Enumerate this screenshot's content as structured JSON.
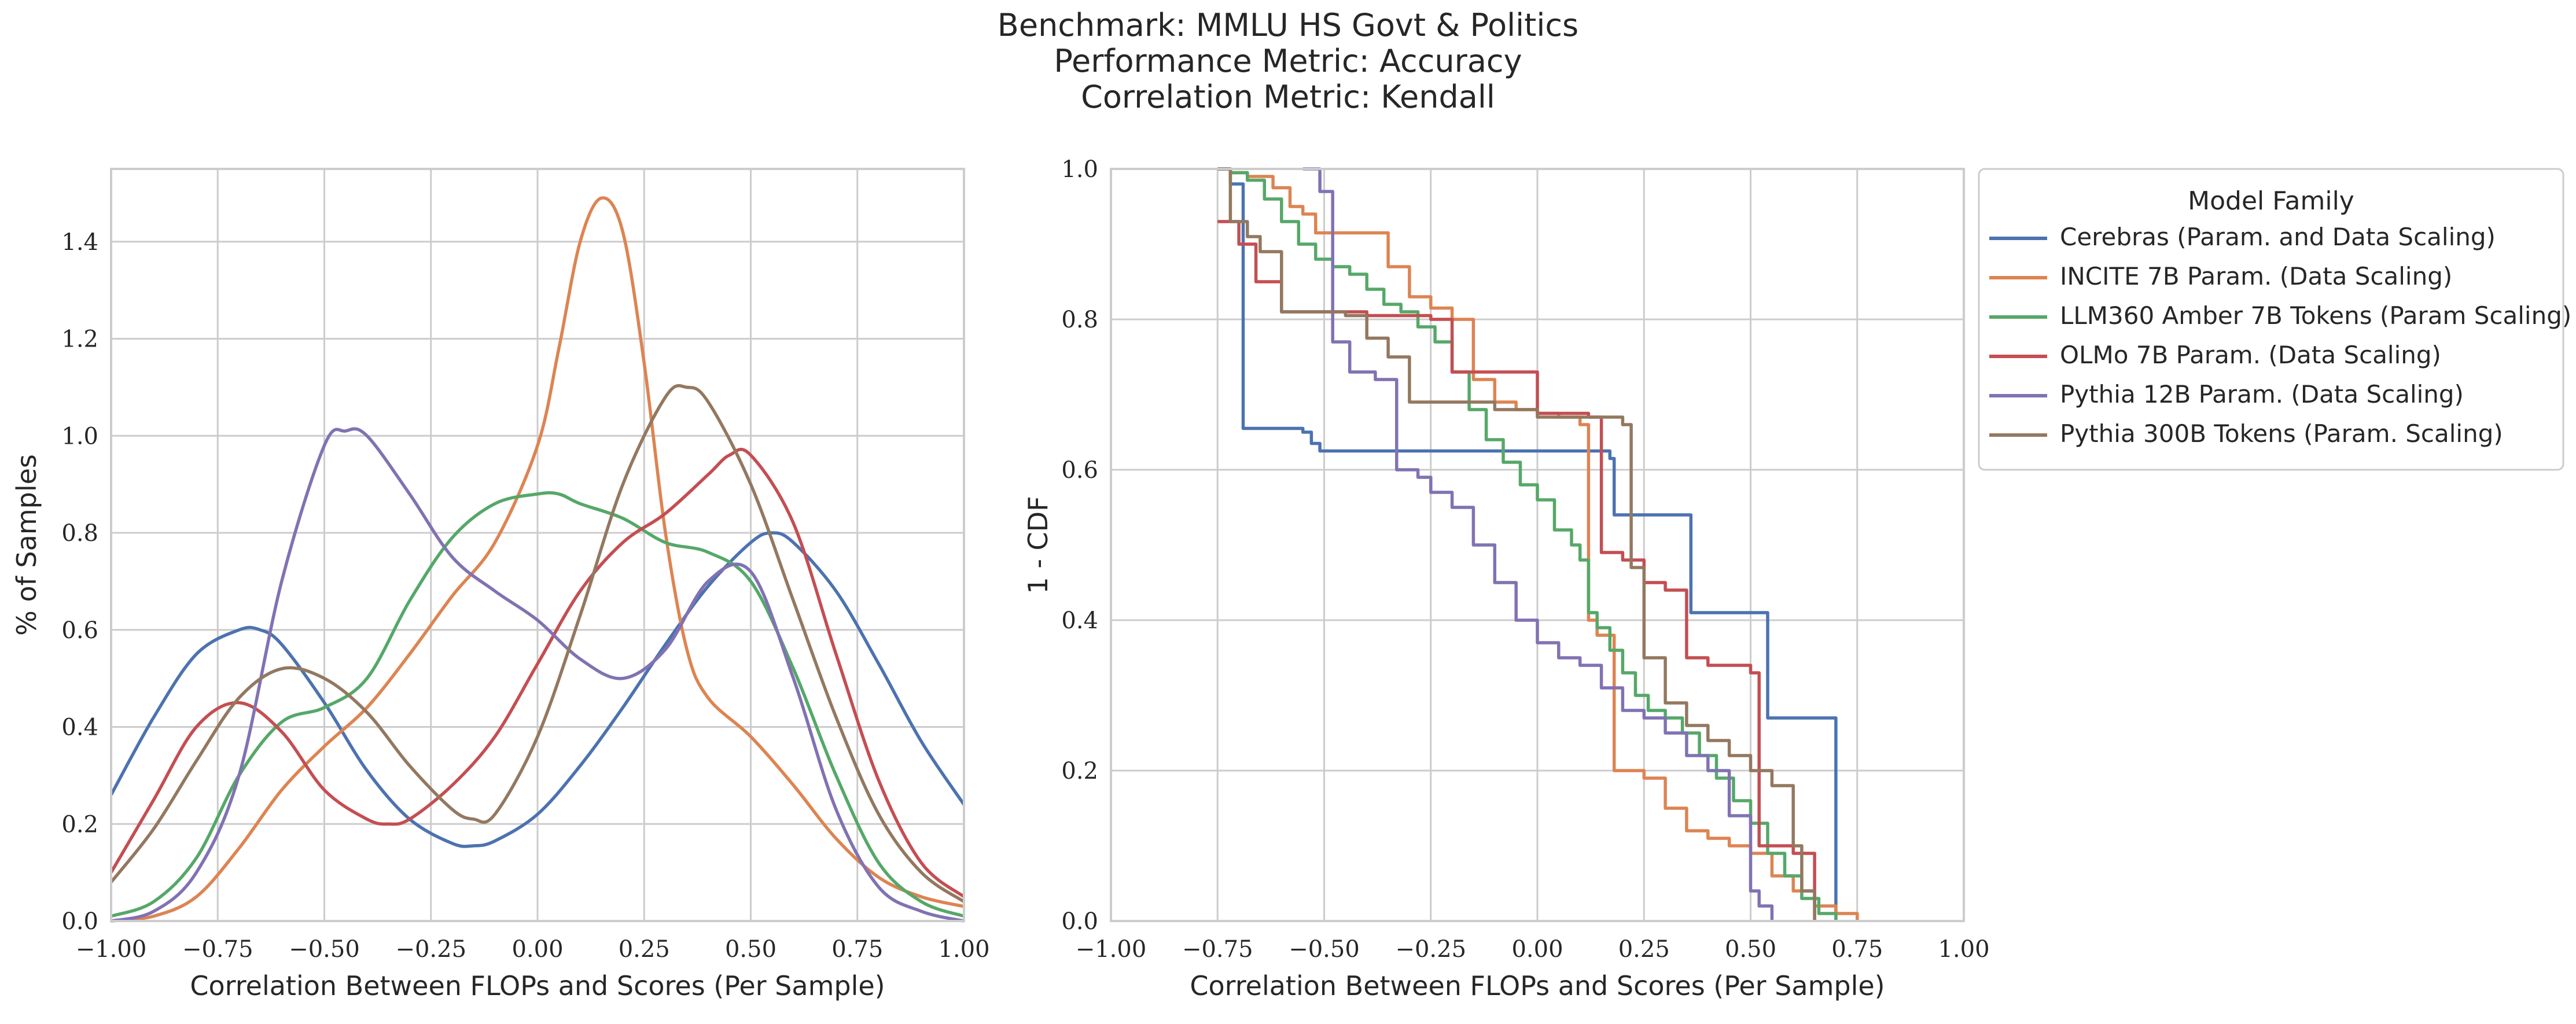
{
  "title_lines": [
    "Benchmark: MMLU HS Govt & Politics",
    "Performance Metric: Accuracy",
    "Correlation Metric: Kendall"
  ],
  "colors": {
    "Cerebras (Param. and Data Scaling)": "#4c72b0",
    "INCITE 7B Param. (Data Scaling)": "#dd8452",
    "LLM360 Amber 7B Tokens (Param Scaling)": "#55a868",
    "OLMo 7B Param. (Data Scaling)": "#c44e52",
    "Pythia 12B Param. (Data Scaling)": "#8172b3",
    "Pythia 300B Tokens (Param. Scaling)": "#937860"
  },
  "chart_data": [
    {
      "type": "line",
      "subtype": "kde",
      "xlabel": "Correlation Between FLOPs and Scores (Per Sample)",
      "ylabel": "% of Samples",
      "xlim": [
        -1.0,
        1.0
      ],
      "ylim": [
        0.0,
        1.55
      ],
      "xticks": [
        "−1.00",
        "−0.75",
        "−0.50",
        "−0.25",
        "0.00",
        "0.25",
        "0.50",
        "0.75",
        "1.00"
      ],
      "yticks": [
        "0.0",
        "0.2",
        "0.4",
        "0.6",
        "0.8",
        "1.0",
        "1.2",
        "1.4"
      ],
      "grid": true,
      "series": [
        {
          "name": "Cerebras (Param. and Data Scaling)",
          "x": [
            -1.0,
            -0.9,
            -0.8,
            -0.7,
            -0.65,
            -0.6,
            -0.5,
            -0.4,
            -0.3,
            -0.2,
            -0.15,
            -0.1,
            0.0,
            0.1,
            0.2,
            0.3,
            0.4,
            0.5,
            0.55,
            0.6,
            0.7,
            0.8,
            0.9,
            1.0
          ],
          "y": [
            0.26,
            0.42,
            0.55,
            0.6,
            0.6,
            0.57,
            0.45,
            0.31,
            0.21,
            0.16,
            0.155,
            0.165,
            0.22,
            0.32,
            0.44,
            0.57,
            0.69,
            0.78,
            0.8,
            0.78,
            0.68,
            0.53,
            0.37,
            0.24
          ]
        },
        {
          "name": "INCITE 7B Param. (Data Scaling)",
          "x": [
            -1.0,
            -0.9,
            -0.8,
            -0.7,
            -0.6,
            -0.5,
            -0.4,
            -0.3,
            -0.2,
            -0.1,
            0.0,
            0.05,
            0.1,
            0.15,
            0.2,
            0.25,
            0.3,
            0.35,
            0.4,
            0.5,
            0.6,
            0.7,
            0.8,
            0.9,
            1.0
          ],
          "y": [
            0.0,
            0.01,
            0.05,
            0.15,
            0.27,
            0.36,
            0.44,
            0.55,
            0.67,
            0.78,
            0.98,
            1.18,
            1.4,
            1.49,
            1.42,
            1.15,
            0.8,
            0.56,
            0.46,
            0.38,
            0.28,
            0.17,
            0.09,
            0.05,
            0.03
          ]
        },
        {
          "name": "LLM360 Amber 7B Tokens (Param Scaling)",
          "x": [
            -1.0,
            -0.9,
            -0.8,
            -0.7,
            -0.6,
            -0.5,
            -0.4,
            -0.3,
            -0.2,
            -0.1,
            0.0,
            0.05,
            0.1,
            0.2,
            0.3,
            0.4,
            0.5,
            0.6,
            0.7,
            0.8,
            0.9,
            1.0
          ],
          "y": [
            0.01,
            0.04,
            0.13,
            0.3,
            0.41,
            0.44,
            0.5,
            0.66,
            0.79,
            0.86,
            0.88,
            0.88,
            0.86,
            0.83,
            0.78,
            0.76,
            0.7,
            0.52,
            0.3,
            0.12,
            0.04,
            0.01
          ]
        },
        {
          "name": "OLMo 7B Param. (Data Scaling)",
          "x": [
            -1.0,
            -0.9,
            -0.8,
            -0.7,
            -0.6,
            -0.5,
            -0.4,
            -0.35,
            -0.3,
            -0.2,
            -0.1,
            0.0,
            0.1,
            0.2,
            0.3,
            0.4,
            0.45,
            0.5,
            0.6,
            0.7,
            0.8,
            0.9,
            1.0
          ],
          "y": [
            0.1,
            0.25,
            0.4,
            0.45,
            0.39,
            0.27,
            0.21,
            0.2,
            0.21,
            0.28,
            0.38,
            0.53,
            0.68,
            0.78,
            0.84,
            0.92,
            0.96,
            0.96,
            0.82,
            0.55,
            0.29,
            0.12,
            0.05
          ]
        },
        {
          "name": "Pythia 12B Param. (Data Scaling)",
          "x": [
            -1.0,
            -0.9,
            -0.8,
            -0.7,
            -0.6,
            -0.5,
            -0.45,
            -0.4,
            -0.3,
            -0.2,
            -0.1,
            0.0,
            0.1,
            0.2,
            0.3,
            0.4,
            0.5,
            0.6,
            0.7,
            0.8,
            0.9,
            1.0
          ],
          "y": [
            0.0,
            0.02,
            0.1,
            0.3,
            0.7,
            0.98,
            1.01,
            1.0,
            0.88,
            0.75,
            0.68,
            0.62,
            0.54,
            0.5,
            0.56,
            0.7,
            0.72,
            0.5,
            0.23,
            0.07,
            0.02,
            0.0
          ]
        },
        {
          "name": "Pythia 300B Tokens (Param. Scaling)",
          "x": [
            -1.0,
            -0.9,
            -0.8,
            -0.7,
            -0.6,
            -0.5,
            -0.4,
            -0.3,
            -0.2,
            -0.15,
            -0.1,
            0.0,
            0.1,
            0.2,
            0.3,
            0.35,
            0.4,
            0.5,
            0.6,
            0.7,
            0.8,
            0.9,
            1.0
          ],
          "y": [
            0.08,
            0.19,
            0.33,
            0.46,
            0.52,
            0.5,
            0.43,
            0.32,
            0.23,
            0.21,
            0.22,
            0.38,
            0.63,
            0.9,
            1.08,
            1.1,
            1.07,
            0.9,
            0.66,
            0.42,
            0.22,
            0.1,
            0.04
          ]
        }
      ]
    },
    {
      "type": "line",
      "subtype": "step",
      "xlabel": "Correlation Between FLOPs and Scores (Per Sample)",
      "ylabel": "1 - CDF",
      "xlim": [
        -1.0,
        1.0
      ],
      "ylim": [
        0.0,
        1.0
      ],
      "xticks": [
        "−1.00",
        "−0.75",
        "−0.50",
        "−0.25",
        "0.00",
        "0.25",
        "0.50",
        "0.75",
        "1.00"
      ],
      "yticks": [
        "0.0",
        "0.2",
        "0.4",
        "0.6",
        "0.8",
        "1.0"
      ],
      "grid": true,
      "legend": {
        "title": "Model Family",
        "placement": "outside-right-top"
      },
      "series": [
        {
          "name": "Cerebras (Param. and Data Scaling)",
          "x": [
            -0.75,
            -0.72,
            -0.69,
            -0.55,
            -0.53,
            -0.51,
            0.17,
            0.18,
            0.35,
            0.36,
            0.53,
            0.54,
            0.69,
            0.7
          ],
          "y": [
            1.0,
            0.98,
            0.655,
            0.65,
            0.635,
            0.625,
            0.615,
            0.54,
            0.54,
            0.41,
            0.41,
            0.27,
            0.27,
            0.0
          ]
        },
        {
          "name": "INCITE 7B Param. (Data Scaling)",
          "x": [
            -0.75,
            -0.72,
            -0.68,
            -0.62,
            -0.58,
            -0.55,
            -0.52,
            -0.47,
            -0.35,
            -0.3,
            -0.25,
            -0.2,
            -0.15,
            -0.1,
            -0.05,
            0.0,
            0.05,
            0.1,
            0.12,
            0.14,
            0.18,
            0.22,
            0.25,
            0.3,
            0.35,
            0.4,
            0.45,
            0.5,
            0.55,
            0.6,
            0.65,
            0.7,
            0.75
          ],
          "y": [
            1.0,
            0.995,
            0.99,
            0.975,
            0.95,
            0.94,
            0.915,
            0.915,
            0.87,
            0.83,
            0.815,
            0.8,
            0.72,
            0.69,
            0.68,
            0.675,
            0.67,
            0.66,
            0.4,
            0.38,
            0.2,
            0.2,
            0.19,
            0.15,
            0.12,
            0.11,
            0.1,
            0.09,
            0.06,
            0.04,
            0.02,
            0.01,
            0.0
          ]
        },
        {
          "name": "LLM360 Amber 7B Tokens (Param Scaling)",
          "x": [
            -0.75,
            -0.72,
            -0.68,
            -0.64,
            -0.6,
            -0.56,
            -0.52,
            -0.48,
            -0.44,
            -0.4,
            -0.36,
            -0.32,
            -0.28,
            -0.24,
            -0.2,
            -0.16,
            -0.12,
            -0.08,
            -0.04,
            0.0,
            0.04,
            0.08,
            0.1,
            0.12,
            0.14,
            0.17,
            0.2,
            0.23,
            0.26,
            0.3,
            0.34,
            0.38,
            0.42,
            0.46,
            0.5,
            0.54,
            0.58,
            0.62,
            0.66,
            0.7
          ],
          "y": [
            1.0,
            0.995,
            0.985,
            0.96,
            0.93,
            0.9,
            0.88,
            0.87,
            0.86,
            0.84,
            0.82,
            0.81,
            0.79,
            0.77,
            0.73,
            0.68,
            0.64,
            0.61,
            0.58,
            0.56,
            0.52,
            0.5,
            0.48,
            0.41,
            0.39,
            0.36,
            0.33,
            0.3,
            0.28,
            0.27,
            0.25,
            0.22,
            0.19,
            0.16,
            0.13,
            0.09,
            0.06,
            0.03,
            0.01,
            0.0
          ]
        },
        {
          "name": "OLMo 7B Param. (Data Scaling)",
          "x": [
            -0.75,
            -0.7,
            -0.66,
            -0.6,
            -0.4,
            -0.25,
            -0.2,
            0.0,
            0.12,
            0.15,
            0.2,
            0.25,
            0.3,
            0.35,
            0.4,
            0.5,
            0.52,
            0.6,
            0.65
          ],
          "y": [
            0.93,
            0.9,
            0.85,
            0.81,
            0.805,
            0.8,
            0.73,
            0.675,
            0.67,
            0.49,
            0.48,
            0.45,
            0.44,
            0.35,
            0.34,
            0.33,
            0.1,
            0.09,
            0.0
          ]
        },
        {
          "name": "Pythia 12B Param. (Data Scaling)",
          "x": [
            -0.55,
            -0.51,
            -0.48,
            -0.44,
            -0.38,
            -0.33,
            -0.28,
            -0.25,
            -0.2,
            -0.15,
            -0.1,
            -0.05,
            0.0,
            0.05,
            0.1,
            0.15,
            0.2,
            0.25,
            0.3,
            0.35,
            0.4,
            0.45,
            0.5,
            0.52,
            0.55
          ],
          "y": [
            1.0,
            0.97,
            0.77,
            0.73,
            0.72,
            0.6,
            0.59,
            0.57,
            0.55,
            0.5,
            0.45,
            0.4,
            0.37,
            0.35,
            0.34,
            0.31,
            0.28,
            0.27,
            0.25,
            0.22,
            0.2,
            0.14,
            0.04,
            0.02,
            0.0
          ]
        },
        {
          "name": "Pythia 300B Tokens (Param. Scaling)",
          "x": [
            -0.75,
            -0.72,
            -0.68,
            -0.65,
            -0.6,
            -0.45,
            -0.4,
            -0.35,
            -0.3,
            -0.2,
            -0.1,
            0.0,
            0.2,
            0.22,
            0.25,
            0.3,
            0.35,
            0.4,
            0.45,
            0.5,
            0.55,
            0.6,
            0.62,
            0.65
          ],
          "y": [
            1.0,
            0.93,
            0.91,
            0.89,
            0.81,
            0.805,
            0.775,
            0.75,
            0.69,
            0.69,
            0.68,
            0.67,
            0.66,
            0.47,
            0.35,
            0.29,
            0.26,
            0.24,
            0.22,
            0.2,
            0.18,
            0.1,
            0.04,
            0.0
          ]
        }
      ]
    }
  ]
}
